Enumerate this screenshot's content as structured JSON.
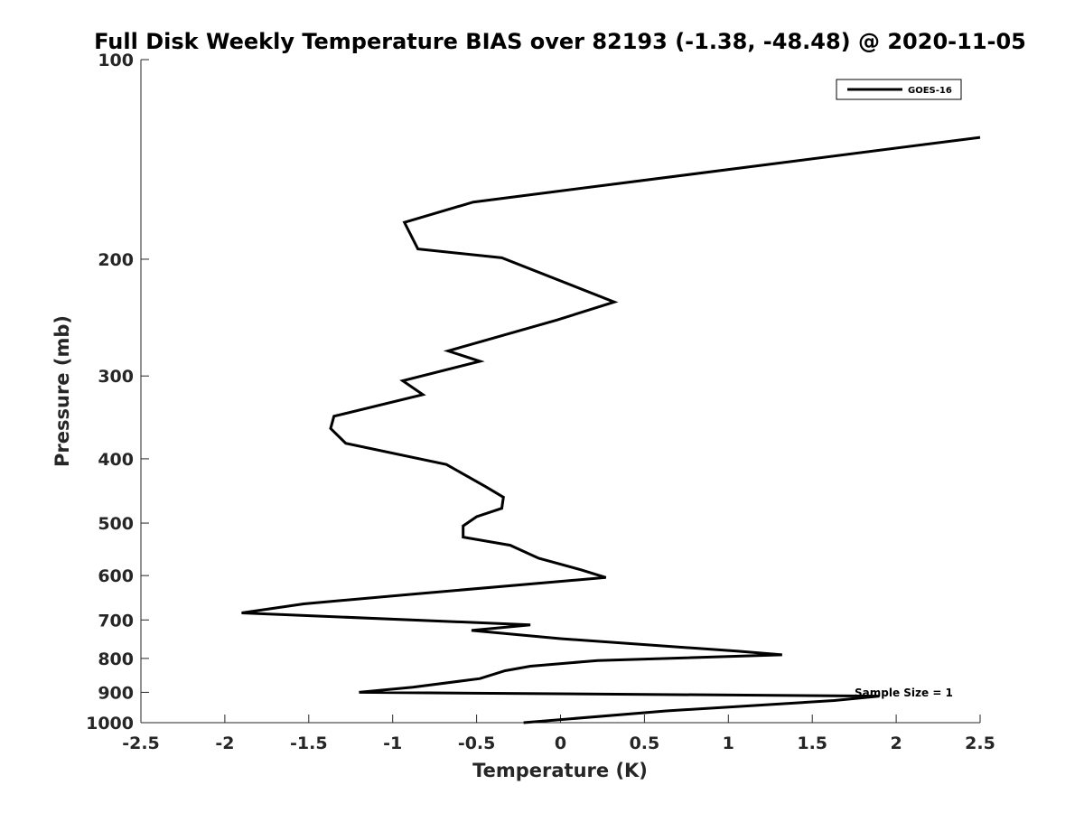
{
  "chart_data": {
    "type": "line",
    "title": "Full Disk Weekly Temperature BIAS over 82193 (-1.38, -48.48) @ 2020-11-05",
    "xlabel": "Temperature (K)",
    "ylabel": "Pressure (mb)",
    "xlim": [
      -2.5,
      2.5
    ],
    "ylim": [
      100,
      1000
    ],
    "yscale": "log",
    "y_reversed": true,
    "x_ticks": [
      -2.5,
      -2,
      -1.5,
      -1,
      -0.5,
      0,
      0.5,
      1,
      1.5,
      2,
      2.5
    ],
    "x_tick_labels": [
      "-2.5",
      "-2",
      "-1.5",
      "-1",
      "-0.5",
      "0",
      "0.5",
      "1",
      "1.5",
      "2",
      "2.5"
    ],
    "y_ticks": [
      100,
      200,
      300,
      400,
      500,
      600,
      700,
      800,
      900,
      1000
    ],
    "y_tick_labels": [
      "100",
      "200",
      "300",
      "400",
      "500",
      "600",
      "700",
      "800",
      "900",
      "1000"
    ],
    "grid": false,
    "legend": {
      "position": "top-right",
      "entries": [
        "GOES-16"
      ]
    },
    "annotations": [
      {
        "text": "Sample Size = 1",
        "x": 1.9,
        "y": 900
      }
    ],
    "series": [
      {
        "name": "GOES-16",
        "color": "#000000",
        "x": [
          2.5,
          -0.52,
          -0.93,
          -0.85,
          -0.35,
          0.32,
          -0.02,
          -0.67,
          -0.48,
          -0.94,
          -0.82,
          -1.35,
          -1.37,
          -1.28,
          -0.68,
          -0.45,
          -0.34,
          -0.35,
          -0.5,
          -0.58,
          -0.58,
          -0.3,
          -0.13,
          0.12,
          0.27,
          -0.88,
          -1.53,
          -1.9,
          -0.18,
          -0.53,
          0.0,
          1.05,
          1.32,
          0.22,
          -0.18,
          -0.33,
          -0.48,
          -0.88,
          -1.2,
          1.9,
          1.63,
          0.63,
          -0.22
        ],
        "y": [
          131,
          164,
          176,
          193,
          199,
          232,
          247,
          275,
          285,
          305,
          320,
          345,
          360,
          379,
          408,
          440,
          457,
          475,
          489,
          505,
          525,
          540,
          565,
          588,
          604,
          640,
          662,
          683,
          712,
          726,
          747,
          780,
          790,
          806,
          822,
          835,
          858,
          884,
          900,
          912,
          926,
          960,
          1000
        ]
      }
    ]
  }
}
